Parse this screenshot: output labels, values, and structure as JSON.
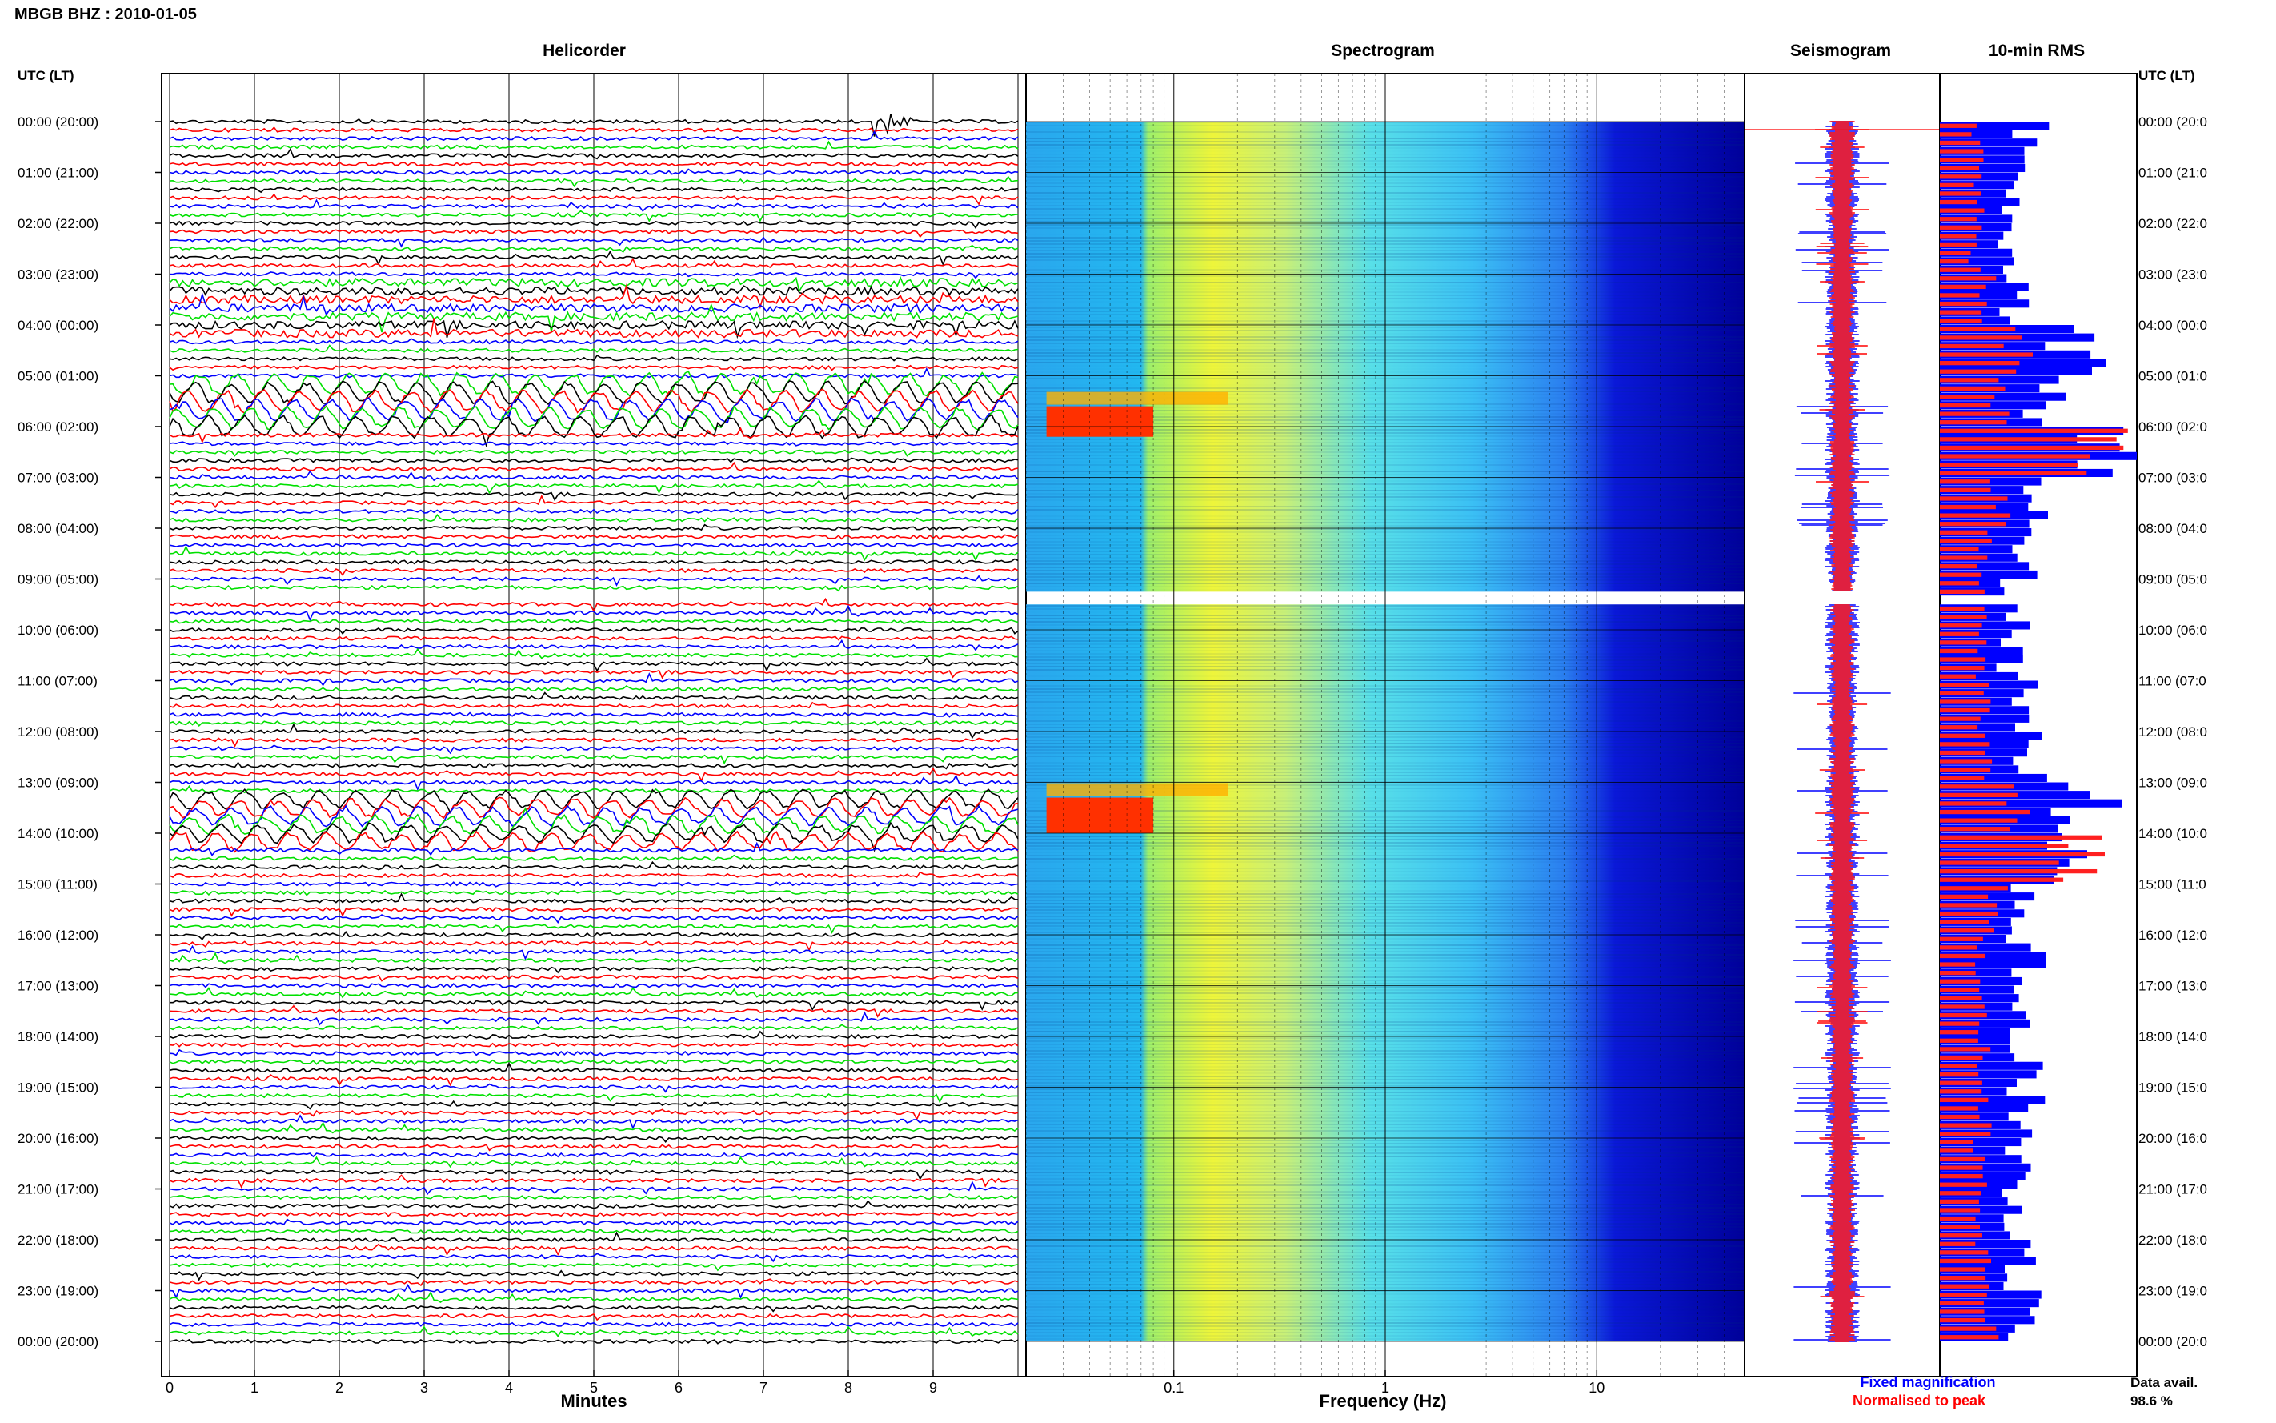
{
  "header": {
    "station_title": "MBGB BHZ : 2010-01-05",
    "utc_label": "UTC (LT)",
    "utc_label_right": "UTC (LT)"
  },
  "panels": {
    "helicorder": "Helicorder",
    "spectrogram": "Spectrogram",
    "seismogram": "Seismogram",
    "rms": "10-min RMS"
  },
  "axes": {
    "minutes_label": "Minutes",
    "frequency_label": "Frequency (Hz)",
    "minute_ticks": [
      "0",
      "1",
      "2",
      "3",
      "4",
      "5",
      "6",
      "7",
      "8",
      "9"
    ],
    "freq_ticks": [
      "0.1",
      "1",
      "10"
    ]
  },
  "time_labels": [
    "00:00 (20:00)",
    "01:00 (21:00)",
    "02:00 (22:00)",
    "03:00 (23:00)",
    "04:00 (00:00)",
    "05:00 (01:00)",
    "06:00 (02:00)",
    "07:00 (03:00)",
    "08:00 (04:00)",
    "09:00 (05:00)",
    "10:00 (06:00)",
    "11:00 (07:00)",
    "12:00 (08:00)",
    "13:00 (09:00)",
    "14:00 (10:00)",
    "15:00 (11:00)",
    "16:00 (12:00)",
    "17:00 (13:00)",
    "18:00 (14:00)",
    "19:00 (15:00)",
    "20:00 (16:00)",
    "21:00 (17:00)",
    "22:00 (18:00)",
    "23:00 (19:00)",
    "00:00 (20:00)"
  ],
  "time_labels_right": [
    "00:00 (20:0",
    "01:00 (21:0",
    "02:00 (22:0",
    "03:00 (23:0",
    "04:00 (00:0",
    "05:00 (01:0",
    "06:00 (02:0",
    "07:00 (03:0",
    "08:00 (04:0",
    "09:00 (05:0",
    "10:00 (06:0",
    "11:00 (07:0",
    "12:00 (08:0",
    "13:00 (09:0",
    "14:00 (10:0",
    "15:00 (11:0",
    "16:00 (12:0",
    "17:00 (13:0",
    "18:00 (14:0",
    "19:00 (15:0",
    "20:00 (16:0",
    "21:00 (17:0",
    "22:00 (18:0",
    "23:00 (19:0",
    "00:00 (20:0"
  ],
  "legend": {
    "fixed": "Fixed magnification",
    "normalised": "Normalised to peak",
    "fixed_color": "#0000ff",
    "normalised_color": "#ff0000"
  },
  "data_availability": {
    "label": "Data avail.",
    "value": "98.6 %"
  },
  "colors": {
    "trace_cycle": [
      "#000000",
      "#ff0000",
      "#0000ff",
      "#00e000"
    ],
    "spectrogram_low": "#00007f",
    "spectrogram_mid": "#00cfff",
    "spectrogram_high": "#ffff00",
    "spectrogram_peak": "#ff2000"
  },
  "chart_data": [
    {
      "type": "line",
      "panel": "helicorder",
      "xlabel": "Minutes",
      "xlim": [
        0,
        10
      ],
      "traces_per_hour": 6,
      "hours": 24,
      "gap_hour_start": 9.25,
      "gap_hour_end": 9.5,
      "events": [
        {
          "hour": 0,
          "minute": 8.3,
          "amplitude": "large"
        },
        {
          "hour": 3.1,
          "minute": 1.3,
          "amplitude": "medium"
        },
        {
          "hour": 5.1,
          "minute": 0,
          "amplitude": "long-period"
        },
        {
          "hour": 13.3,
          "minute": 0,
          "amplitude": "long-period"
        }
      ]
    },
    {
      "type": "heatmap",
      "panel": "spectrogram",
      "xlabel": "Frequency (Hz)",
      "xscale": "log",
      "xlim": [
        0.02,
        50
      ],
      "ylim_hours": [
        0,
        24
      ],
      "peak_energy": [
        {
          "hour_start": 5.6,
          "hour_end": 6.2,
          "freq_low": 0.025,
          "freq_high": 0.08
        },
        {
          "hour_start": 13.3,
          "hour_end": 14.0,
          "freq_low": 0.025,
          "freq_high": 0.08
        }
      ]
    },
    {
      "type": "bar",
      "panel": "10-min RMS",
      "bins_per_hour": 6,
      "hours": 24,
      "hourly_fixed_rms": [
        0.45,
        0.35,
        0.33,
        0.4,
        0.7,
        0.55,
        0.85,
        0.5,
        0.4,
        0.4,
        0.35,
        0.4,
        0.45,
        0.75,
        0.7,
        0.45,
        0.45,
        0.4,
        0.42,
        0.43,
        0.4,
        0.38,
        0.42,
        0.45
      ],
      "hourly_normalised_rms": [
        0.2,
        0.2,
        0.18,
        0.25,
        0.4,
        0.3,
        0.85,
        0.3,
        0.22,
        0.2,
        0.2,
        0.22,
        0.25,
        0.4,
        0.7,
        0.3,
        0.22,
        0.2,
        0.22,
        0.22,
        0.2,
        0.2,
        0.22,
        0.25
      ]
    }
  ]
}
